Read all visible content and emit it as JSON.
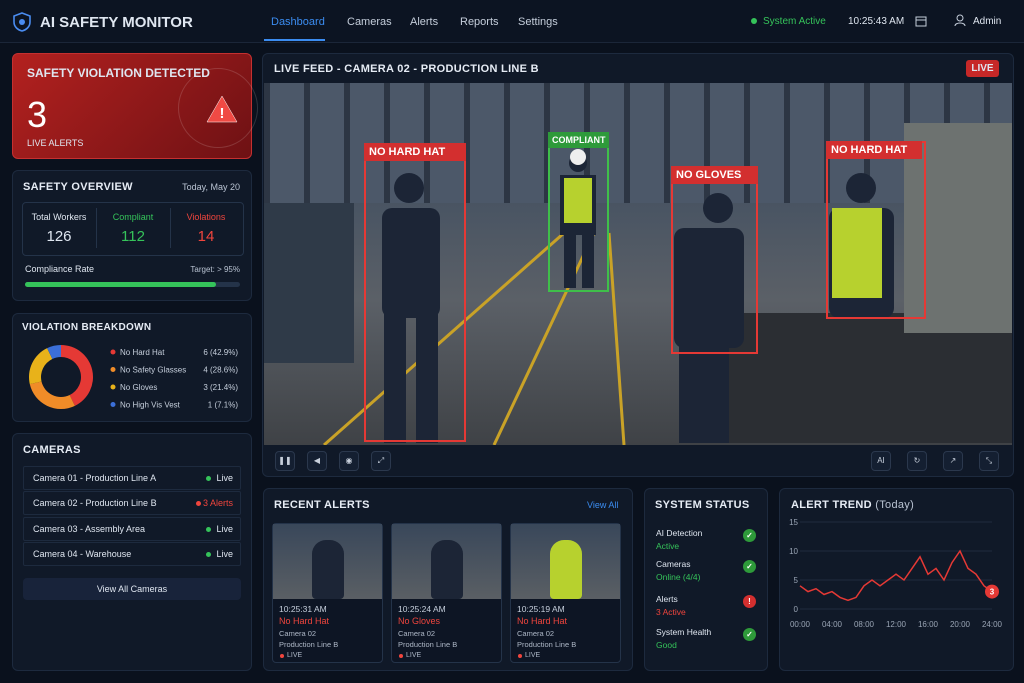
{
  "header": {
    "title": "AI SAFETY MONITOR",
    "nav": [
      "Dashboard",
      "Cameras",
      "Alerts",
      "Reports",
      "Settings"
    ],
    "status": "System Active",
    "time": "10:25:43 AM",
    "user": "Admin"
  },
  "banner": {
    "title": "SAFETY VIOLATION DETECTED",
    "count": 3,
    "label": "LIVE ALERTS"
  },
  "overview": {
    "title": "SAFETY OVERVIEW",
    "date": "Today, May 20",
    "stats": [
      {
        "label": "Total Workers",
        "value": 126
      },
      {
        "label": "Compliant",
        "value": 112
      },
      {
        "label": "Violations",
        "value": 14
      }
    ],
    "compliance_label": "Compliance Rate",
    "target": "Target: > 95%"
  },
  "cameras": {
    "title": "CAMERAS",
    "rows": [
      {
        "name": "Camera 01 - Production Line A",
        "status": "Live"
      },
      {
        "name": "Camera 02 - Production Line B",
        "status": "3 Alerts"
      },
      {
        "name": "Camera 03 - Assembly Area",
        "status": "Live"
      },
      {
        "name": "Camera 04 - Warehouse",
        "status": "Live"
      }
    ],
    "button": "View All Cameras"
  },
  "feed": {
    "title": "LIVE FEED - CAMERA 02 - PRODUCTION LINE B",
    "badge": "LIVE",
    "detections": [
      "NO HARD HAT",
      "COMPLIANT",
      "NO GLOVES",
      "NO HARD HAT"
    ],
    "ai_button": "AI"
  },
  "recent_alerts": {
    "title": "RECENT ALERTS",
    "link": "View All",
    "items": [
      {
        "time": "10:25:31 AM",
        "type": "No Hard Hat",
        "camera": "Camera 02",
        "location": "Production Line B",
        "tag": "LIVE"
      },
      {
        "time": "10:25:24 AM",
        "type": "No Gloves",
        "camera": "Camera 02",
        "location": "Production Line B",
        "tag": "LIVE"
      },
      {
        "time": "10:25:19 AM",
        "type": "No Hard Hat",
        "camera": "Camera 02",
        "location": "Production Line B",
        "tag": "LIVE"
      }
    ]
  },
  "system_status": {
    "title": "SYSTEM STATUS",
    "items": [
      {
        "label": "AI Detection",
        "value": "Active",
        "icon": "✓"
      },
      {
        "label": "Cameras",
        "value": "Online (4/4)",
        "icon": "✓"
      },
      {
        "label": "Alerts",
        "value": "3 Active",
        "icon": "!"
      },
      {
        "label": "System Health",
        "value": "Good",
        "icon": "✓"
      }
    ]
  },
  "chart_data": [
    {
      "type": "pie",
      "title": "VIOLATION BREAKDOWN",
      "categories": [
        "No Hard Hat",
        "No Safety Glasses",
        "No Gloves",
        "No High Vis Vest"
      ],
      "values": [
        6,
        4,
        3,
        1
      ],
      "value_labels": [
        "6 (42.9%)",
        "4 (28.6%)",
        "3 (21.4%)",
        "1 (7.1%)"
      ],
      "colors": [
        "#e53935",
        "#f08c28",
        "#e8b21a",
        "#3b6fd8"
      ]
    },
    {
      "type": "line",
      "title": "ALERT TREND",
      "subtitle": "(Today)",
      "color": "#e53935",
      "x": [
        0,
        1,
        2,
        3,
        4,
        5,
        6,
        7,
        8,
        9,
        10,
        11,
        12,
        13,
        14,
        15,
        16,
        17,
        18,
        19,
        20,
        21,
        22,
        23,
        24
      ],
      "values": [
        4,
        3,
        3.5,
        2.5,
        3,
        2,
        1.5,
        2,
        4,
        5,
        4,
        5,
        6,
        5,
        7,
        9,
        6,
        7,
        5,
        8,
        10,
        7,
        6,
        4,
        3
      ],
      "xlim": [
        0,
        24
      ],
      "xticks": [
        {
          "value": 0,
          "label": "00:00"
        },
        {
          "value": 4,
          "label": "04:00"
        },
        {
          "value": 8,
          "label": "08:00"
        },
        {
          "value": 12,
          "label": "12:00"
        },
        {
          "value": 16,
          "label": "16:00"
        },
        {
          "value": 20,
          "label": "20:00"
        },
        {
          "value": 24,
          "label": "24:00"
        }
      ],
      "ylim": [
        0,
        15
      ],
      "yticks": [
        0,
        5,
        10,
        15
      ],
      "grid": true
    }
  ]
}
